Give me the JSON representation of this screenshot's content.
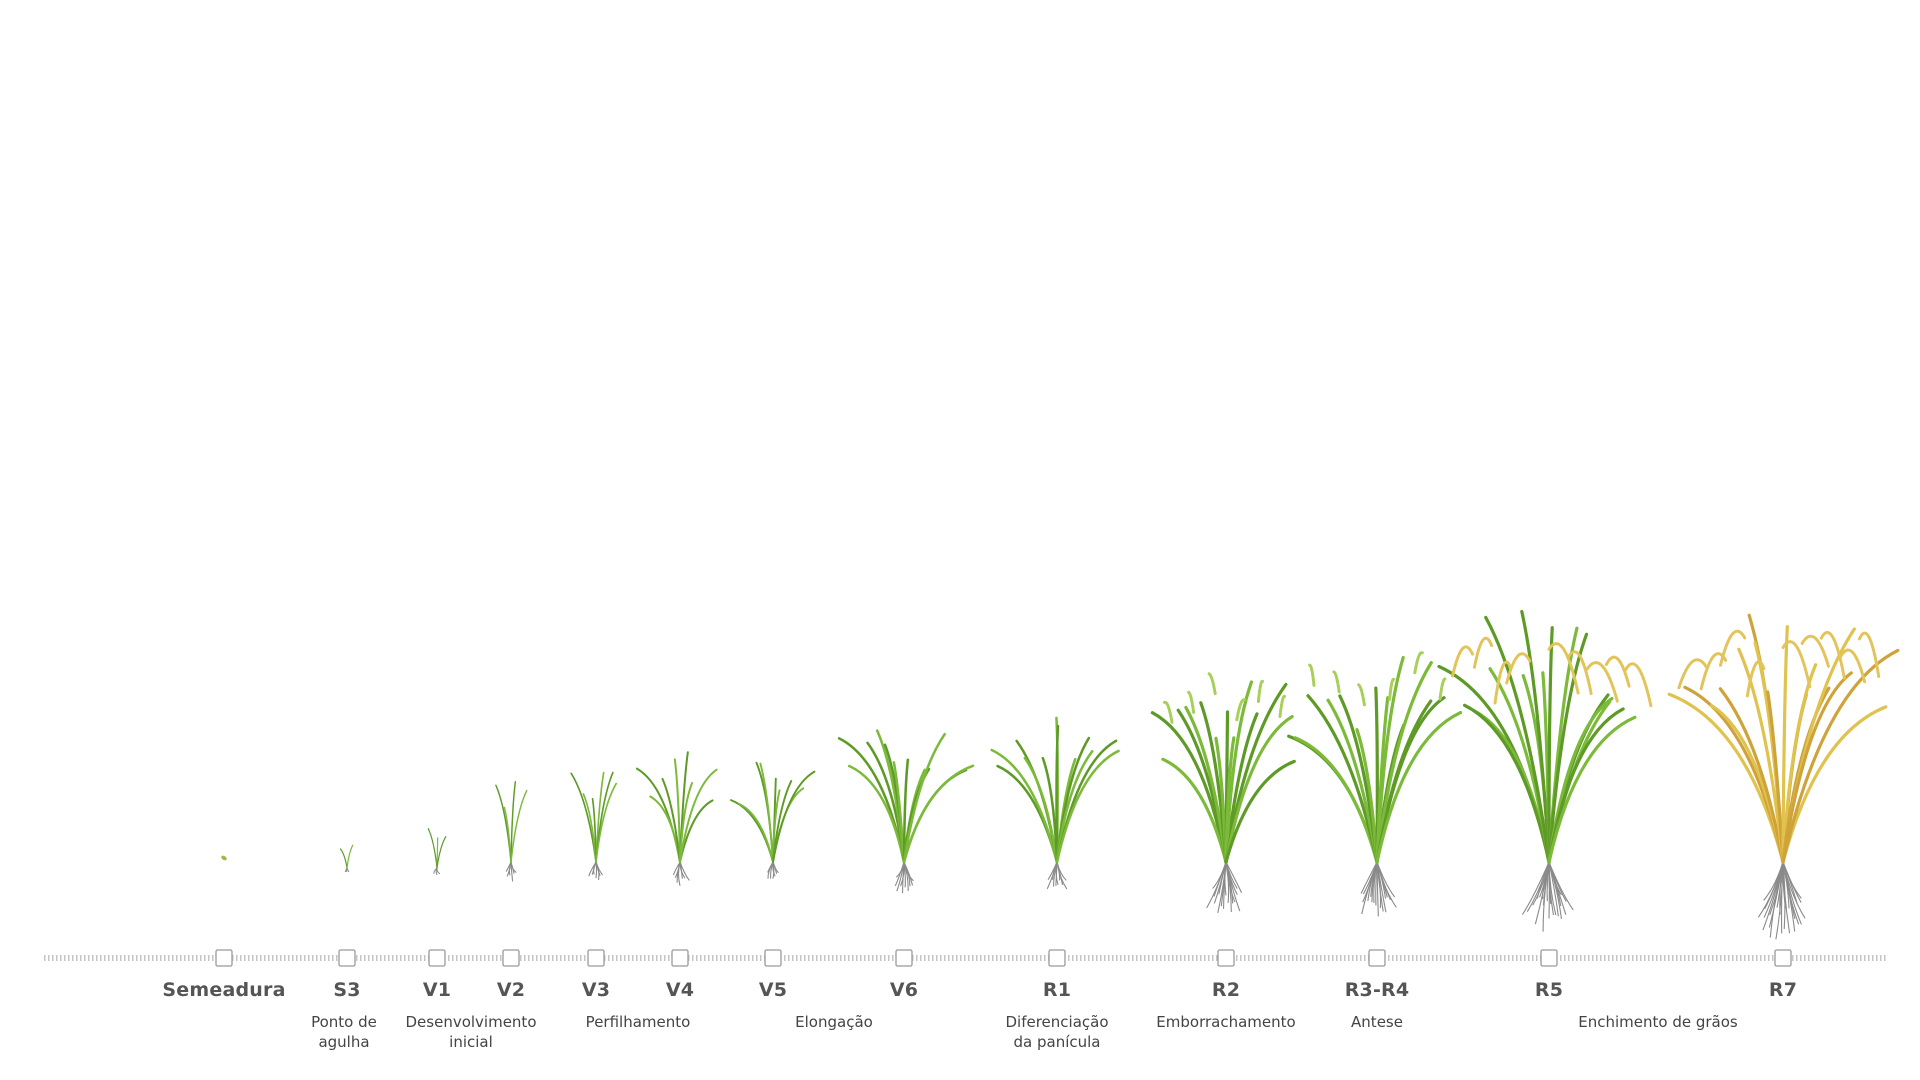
{
  "stages": [
    {
      "code": "Semeadura",
      "stage": 0
    },
    {
      "code": "S3",
      "stage": 1
    },
    {
      "code": "V1",
      "stage": 2
    },
    {
      "code": "V2",
      "stage": 3
    },
    {
      "code": "V3",
      "stage": 4
    },
    {
      "code": "V4",
      "stage": 5
    },
    {
      "code": "V5",
      "stage": 6
    },
    {
      "code": "V6",
      "stage": 7
    },
    {
      "code": "R1",
      "stage": 8
    },
    {
      "code": "R2",
      "stage": 9
    },
    {
      "code": "R3-R4",
      "stage": 10
    },
    {
      "code": "R5",
      "stage": 11
    },
    {
      "code": "R7",
      "stage": 12
    }
  ],
  "descriptions": [
    {
      "text": "Ponto de\nagulha"
    },
    {
      "text": "Desenvolvimento\ninicial"
    },
    {
      "text": "Perfilhamento"
    },
    {
      "text": "Elongação"
    },
    {
      "text": "Diferenciação\nda panícula"
    },
    {
      "text": "Emborrachamento"
    },
    {
      "text": "Antese"
    },
    {
      "text": "Enchimento de grãos"
    }
  ],
  "colors": {
    "leaf": "#7cba3a",
    "leaf_dark": "#5e9a26",
    "panicle_green": "#a8cf5a",
    "panicle_gold": "#e2c45a",
    "mature": "#cfa23a",
    "root": "#8a8a8a",
    "axis": "#c4c4c4",
    "label": "#555555"
  }
}
